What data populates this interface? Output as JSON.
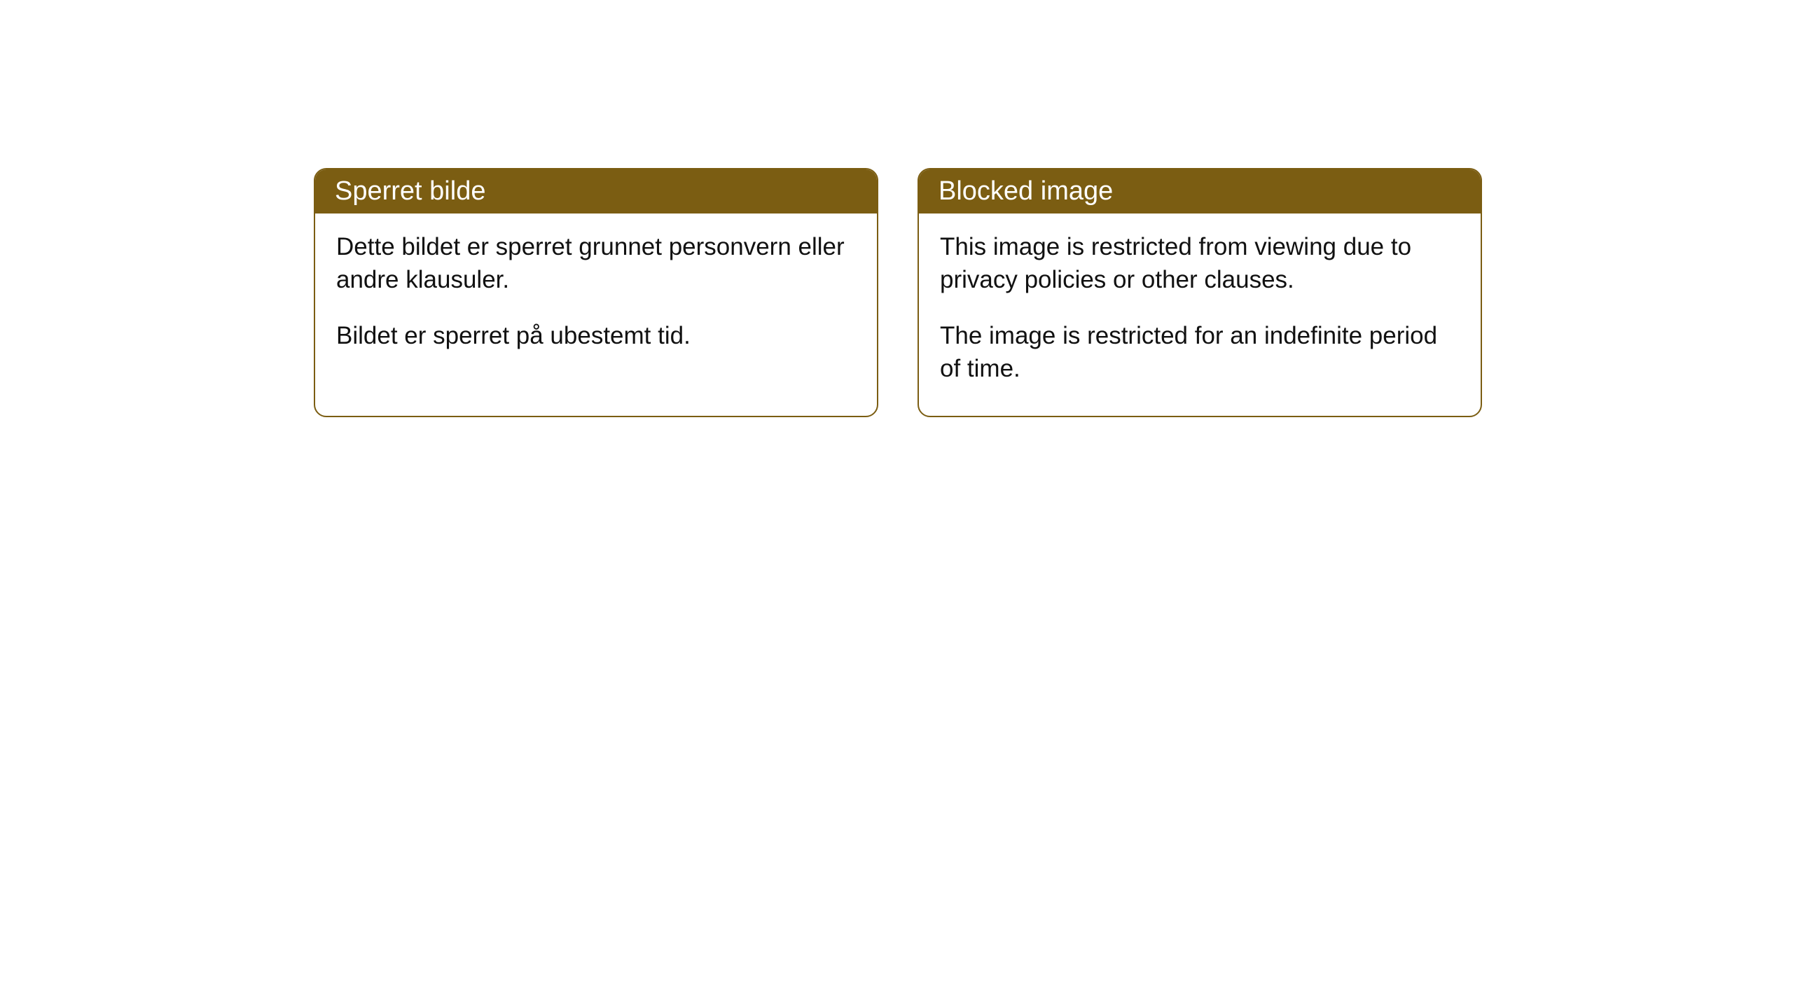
{
  "cards": [
    {
      "title": "Sperret bilde",
      "para1": "Dette bildet er sperret grunnet personvern eller andre klausuler.",
      "para2": "Bildet er sperret på ubestemt tid."
    },
    {
      "title": "Blocked image",
      "para1": "This image is restricted from viewing due to privacy policies or other clauses.",
      "para2": "The image is restricted for an indefinite period of time."
    }
  ],
  "style": {
    "header_bg": "#7b5d12",
    "header_text_color": "#ffffff",
    "border_color": "#7b5d12",
    "body_bg": "#ffffff",
    "body_text_color": "#111111",
    "border_radius": 18,
    "title_fontsize": 38,
    "body_fontsize": 35
  }
}
